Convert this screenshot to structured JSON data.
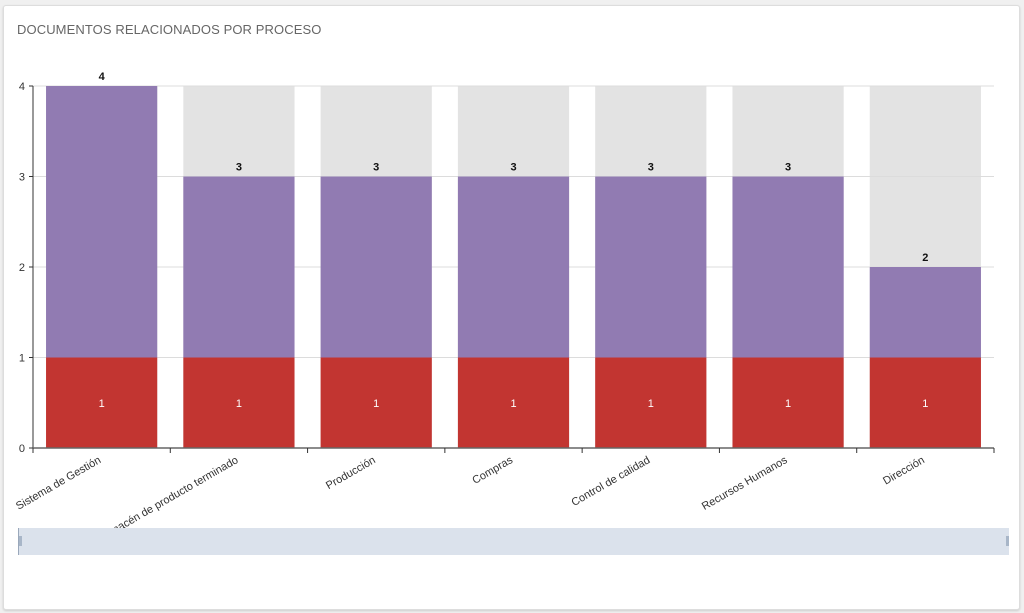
{
  "chart_data": {
    "type": "bar",
    "stacked": true,
    "title": "DOCUMENTOS RELACIONADOS POR PROCESO",
    "categories": [
      "Sistema de Gestión",
      "Almacén de producto terminado",
      "Producción",
      "Compras",
      "Control de calidad",
      "Recursos Humanos",
      "Dirección"
    ],
    "series": [
      {
        "values": [
          1,
          1,
          1,
          1,
          1,
          1,
          1
        ],
        "color": "#c23531",
        "labels_shown": true
      },
      {
        "values": [
          3,
          2,
          2,
          2,
          2,
          2,
          1
        ],
        "color": "#917bb2",
        "labels_shown": false
      }
    ],
    "totals": [
      4,
      3,
      3,
      3,
      3,
      3,
      2
    ],
    "background_bar_color": "#e3e3e3",
    "ylim": [
      0,
      4
    ],
    "yticks": [
      "0",
      "1",
      "2",
      "3",
      "4"
    ],
    "grid": true,
    "xlabel": "",
    "ylabel": "",
    "data_zoom_slider": true
  }
}
